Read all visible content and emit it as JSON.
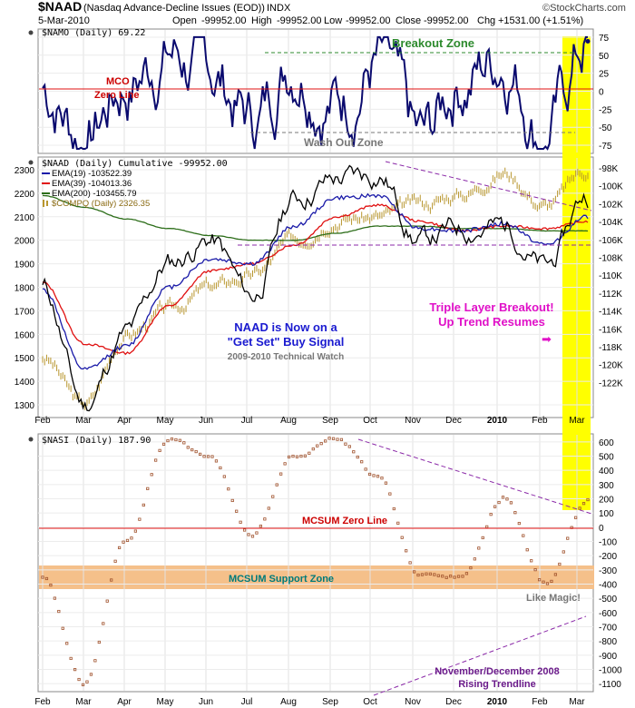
{
  "header": {
    "symbol": "$NAAD",
    "description": "(Nasdaq Advance-Decline Issues (EOD))",
    "exchange": "INDX",
    "date": "5-Mar-2010",
    "open_label": "Open",
    "open_value": "-99952.00",
    "high_label": "High",
    "high_value": "-99952.00",
    "low_label": "Low",
    "low_value": "-99952.00",
    "close_label": "Close",
    "close_value": "-99952.00",
    "chg_label": "Chg",
    "chg_value": "+1531.00 (+1.51%)",
    "brand": "©StockCharts.com"
  },
  "x_axis": {
    "months": [
      "Feb",
      "Mar",
      "Apr",
      "May",
      "Jun",
      "Jul",
      "Aug",
      "Sep",
      "Oct",
      "Nov",
      "Dec",
      "2010",
      "Feb",
      "Mar"
    ]
  },
  "panel1": {
    "label": "$NAMO (Daily) 69.22",
    "ticks": [
      "75",
      "50",
      "25",
      "0",
      "-25",
      "-50",
      "-75"
    ],
    "breakout_zone": "Breakout Zone",
    "mco_line1": "MCO",
    "mco_line2": "Zero Line",
    "wash_out_zone": "Wash Out Zone"
  },
  "panel2": {
    "label": "$NAAD (Daily) Cumulative -99952.00",
    "legend": [
      {
        "text": "EMA(19) -103522.39",
        "color": "#1a1aa8"
      },
      {
        "text": "EMA(39) -104013.36",
        "color": "#e01010"
      },
      {
        "text": "EMA(200) -103455.79",
        "color": "#2d6e1a"
      },
      {
        "text": "$COMPQ (Daily) 2326.35",
        "color": "#b8962e"
      }
    ],
    "left_ticks": [
      "2300",
      "2200",
      "2100",
      "2000",
      "1900",
      "1800",
      "1700",
      "1600",
      "1500",
      "1400",
      "1300"
    ],
    "right_ticks": [
      "-98K",
      "-100K",
      "-102K",
      "-104K",
      "-106K",
      "-108K",
      "-110K",
      "-112K",
      "-114K",
      "-116K",
      "-118K",
      "-120K",
      "-122K"
    ],
    "signal_line1": "NAAD is Now on a",
    "signal_line2": "\"Get Set\" Buy Signal",
    "watch_text": "2009-2010 Technical Watch",
    "breakout_line1": "Triple Layer Breakout!",
    "breakout_line2": "Up Trend Resumes",
    "arrow_glyph": "➡"
  },
  "panel3": {
    "label": "$NASI (Daily) 187.90",
    "ticks": [
      "600",
      "500",
      "400",
      "300",
      "200",
      "100",
      "0",
      "-100",
      "-200",
      "-300",
      "-400",
      "-500",
      "-600",
      "-700",
      "-800",
      "-900",
      "-1000",
      "-1100"
    ],
    "zero_line": "MCSUM Zero Line",
    "support_zone": "MCSUM Support Zone",
    "like_magic": "Like Magic!",
    "trendline_line1": "November/December 2008",
    "trendline_line2": "Rising Trendline"
  },
  "colors": {
    "price": "#000000",
    "ema19": "#1a1aa8",
    "ema39": "#e01010",
    "ema200": "#2d6e1a",
    "compq": "#b8962e",
    "namo": "#0a0a6e",
    "highlight": "#ffff00",
    "support_zone": "#f5c08a",
    "zero_line": "#e01010",
    "trendline": "#8b2aa8",
    "guide_green": "#2d8a2d",
    "guide_gray": "#777777",
    "annotation_blue": "#1a1ad0",
    "annotation_magenta": "#e010c8",
    "nasi_dot": "#a0522d"
  },
  "chart_data": [
    {
      "type": "line",
      "title": "$NAMO (Daily) 69.22",
      "x": [
        "Feb",
        "Mar",
        "Apr",
        "May",
        "Jun",
        "Jul",
        "Aug",
        "Sep",
        "Oct",
        "Nov",
        "Dec",
        "2010",
        "Feb",
        "Mar"
      ],
      "series": [
        {
          "name": "$NAMO (Daily) 69.22",
          "values": [
            5,
            -60,
            10,
            55,
            25,
            -40,
            50,
            -10,
            40,
            -80,
            20,
            50,
            -55,
            69
          ]
        }
      ],
      "ylim": [
        -85,
        85
      ],
      "reference_lines": [
        58,
        0,
        -62
      ]
    },
    {
      "type": "line",
      "title": "$NAAD (Daily) Cumulative -99952.00",
      "x": [
        "Feb",
        "Mar",
        "Apr",
        "May",
        "Jun",
        "Jul",
        "Aug",
        "Sep",
        "Oct",
        "Nov",
        "Dec",
        "2010",
        "Feb",
        "Mar"
      ],
      "series": [
        {
          "name": "$NAAD (Daily) Cumulative -99952.00",
          "values": [
            1800,
            1300,
            1600,
            1900,
            2000,
            1760,
            2180,
            2260,
            2280,
            2000,
            2050,
            2060,
            1880,
            2200
          ]
        },
        {
          "name": "EMA(19) -103522.39",
          "values": [
            1790,
            1450,
            1550,
            1800,
            1920,
            1900,
            2060,
            2180,
            2190,
            2050,
            2040,
            2070,
            1980,
            2100
          ]
        },
        {
          "name": "EMA(39) -104013.36",
          "values": [
            1820,
            1560,
            1520,
            1720,
            1870,
            1900,
            1980,
            2100,
            2150,
            2080,
            2040,
            2060,
            2050,
            2080
          ]
        },
        {
          "name": "EMA(200) -103455.79",
          "values": [
            2190,
            2140,
            2090,
            2050,
            2020,
            2000,
            2000,
            2030,
            2060,
            2060,
            2050,
            2050,
            2040,
            2040
          ]
        },
        {
          "name": "$COMPQ (Daily) 2326.35",
          "values": [
            1500,
            1300,
            1600,
            1700,
            1800,
            1850,
            2000,
            2100,
            2100,
            2150,
            2200,
            2290,
            2150,
            2300
          ]
        }
      ],
      "ylim": [
        1250,
        2350
      ]
    },
    {
      "type": "scatter",
      "title": "$NASI (Daily) 187.90",
      "x": [
        "Feb",
        "Mar",
        "Apr",
        "May",
        "Jun",
        "Jul",
        "Aug",
        "Sep",
        "Oct",
        "Nov",
        "Dec",
        "2010",
        "Feb",
        "Mar"
      ],
      "series": [
        {
          "name": "$NASI (Daily) 187.90",
          "values": [
            -350,
            -1100,
            -100,
            620,
            500,
            -50,
            500,
            620,
            350,
            -350,
            -350,
            200,
            -400,
            188
          ]
        }
      ],
      "ylim": [
        -1150,
        650
      ],
      "reference_lines": [
        0
      ]
    }
  ]
}
